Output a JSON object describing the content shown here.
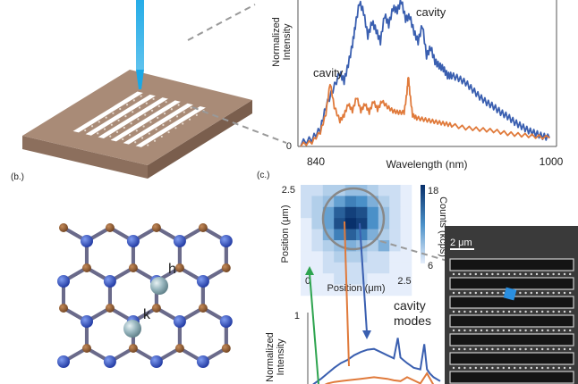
{
  "panel_labels": {
    "b": "(b.)",
    "c": "(c.)"
  },
  "colors": {
    "blue": "#3a5fb0",
    "orange": "#e07a3b",
    "green": "#2ea44f",
    "chip_top": "#a98b77",
    "chip_side": "#8c6f5d",
    "boron": "#8b5a35",
    "nitrogen": "#2f4db0",
    "defect": "#88a9b2",
    "laser": "#1aa8e6"
  },
  "lattice": {
    "site_h": "h",
    "site_k": "k"
  },
  "chart_data": [
    {
      "type": "line",
      "panel": "a",
      "xlabel": "Wavelength (nm)",
      "ylabel": "Normalized Intensity",
      "x_ticks": [
        "840",
        "1000"
      ],
      "y_ticks": [
        "0"
      ],
      "xlim": [
        820,
        1005
      ],
      "ylim": [
        0,
        1
      ],
      "annotations": [
        "cavity",
        "cavity"
      ],
      "grid": false,
      "series": [
        {
          "color": "blue",
          "x": [
            822,
            830,
            836,
            840,
            845,
            850,
            853,
            856,
            859,
            861,
            864,
            867,
            870,
            873,
            876,
            879,
            882,
            885,
            888,
            891,
            894,
            897,
            900,
            903,
            906,
            909,
            912,
            915,
            918,
            921,
            924,
            927,
            930,
            935,
            940,
            945,
            950,
            955,
            960,
            965,
            970,
            975,
            980,
            985,
            990,
            995,
            1000
          ],
          "y": [
            0.02,
            0.05,
            0.12,
            0.28,
            0.4,
            0.52,
            0.46,
            0.58,
            0.72,
            0.85,
            1.02,
            0.95,
            0.78,
            0.88,
            0.82,
            0.74,
            0.93,
            0.86,
            0.98,
            0.96,
            1.03,
            0.9,
            0.92,
            0.81,
            0.74,
            0.86,
            0.64,
            0.7,
            0.6,
            0.57,
            0.55,
            0.5,
            0.5,
            0.48,
            0.45,
            0.4,
            0.35,
            0.31,
            0.28,
            0.24,
            0.21,
            0.17,
            0.14,
            0.11,
            0.09,
            0.07,
            0.06
          ]
        },
        {
          "color": "orange",
          "x": [
            822,
            830,
            836,
            840,
            843,
            846,
            850,
            853,
            856,
            859,
            862,
            865,
            868,
            871,
            874,
            877,
            880,
            884,
            888,
            892,
            896,
            898,
            899,
            900,
            902,
            905,
            910,
            915,
            920,
            925,
            930,
            940,
            950,
            960,
            970,
            980,
            990,
            1000
          ],
          "y": [
            0.01,
            0.03,
            0.1,
            0.23,
            0.45,
            0.28,
            0.18,
            0.22,
            0.3,
            0.25,
            0.35,
            0.25,
            0.3,
            0.24,
            0.32,
            0.26,
            0.32,
            0.28,
            0.25,
            0.24,
            0.24,
            0.38,
            0.5,
            0.38,
            0.22,
            0.2,
            0.19,
            0.18,
            0.17,
            0.16,
            0.15,
            0.13,
            0.12,
            0.11,
            0.09,
            0.08,
            0.07,
            0.06
          ]
        }
      ]
    },
    {
      "type": "heatmap",
      "panel": "c",
      "xlabel": "Position (μm)",
      "ylabel": "Position (μm)",
      "colorbar_label": "Counts (kcps)",
      "colorbar_ticks": [
        "18",
        "6"
      ],
      "x_ticks": [
        "0",
        "2.5"
      ],
      "y_ticks": [
        "2.5"
      ],
      "xlim": [
        0,
        2.5
      ],
      "ylim": [
        0,
        2.5
      ],
      "grid_size": 10,
      "values": [
        [
          7,
          7,
          8,
          8,
          9,
          9,
          8,
          7,
          7,
          6
        ],
        [
          7,
          8,
          9,
          11,
          13,
          12,
          10,
          8,
          7,
          6
        ],
        [
          7,
          8,
          11,
          15,
          17,
          16,
          12,
          9,
          7,
          6
        ],
        [
          6,
          8,
          11,
          16,
          18,
          17,
          12,
          9,
          7,
          6
        ],
        [
          6,
          7,
          10,
          13,
          15,
          13,
          10,
          8,
          7,
          6
        ],
        [
          6,
          7,
          8,
          9,
          10,
          9,
          8,
          10,
          7,
          6
        ],
        [
          6,
          6,
          7,
          8,
          8,
          8,
          7,
          7,
          6,
          6
        ],
        [
          6,
          6,
          7,
          7,
          7,
          7,
          7,
          7,
          6,
          6
        ],
        [
          6,
          6,
          6,
          7,
          7,
          7,
          6,
          6,
          6,
          6
        ],
        [
          6,
          6,
          6,
          6,
          6,
          6,
          6,
          6,
          6,
          6
        ]
      ]
    },
    {
      "type": "line",
      "panel": "c-lower",
      "ylabel": "Normalized Intensity",
      "y_ticks": [
        "1"
      ],
      "annotation": "cavity modes",
      "xlim": [
        0,
        1
      ],
      "ylim": [
        0,
        1
      ],
      "series": [
        {
          "color": "blue",
          "x": [
            0.0,
            0.05,
            0.1,
            0.15,
            0.2,
            0.25,
            0.3,
            0.35,
            0.4,
            0.45,
            0.5,
            0.55,
            0.6,
            0.65,
            0.68,
            0.7,
            0.72,
            0.75,
            0.8,
            0.85,
            0.88,
            0.9,
            0.92,
            0.95,
            1.0
          ],
          "y": [
            0.05,
            0.12,
            0.18,
            0.25,
            0.32,
            0.38,
            0.42,
            0.48,
            0.52,
            0.55,
            0.56,
            0.52,
            0.48,
            0.44,
            0.7,
            0.45,
            0.42,
            0.38,
            0.32,
            0.3,
            0.62,
            0.3,
            0.25,
            0.2,
            0.15
          ]
        },
        {
          "color": "orange",
          "x": [
            0.0,
            0.05,
            0.1,
            0.15,
            0.2,
            0.3,
            0.4,
            0.5,
            0.6,
            0.65,
            0.7,
            0.75,
            0.8,
            0.85,
            0.9,
            0.95,
            1.0
          ],
          "y": [
            0.02,
            0.05,
            0.08,
            0.12,
            0.14,
            0.16,
            0.18,
            0.2,
            0.18,
            0.16,
            0.15,
            0.2,
            0.16,
            0.12,
            0.25,
            0.1,
            0.08
          ]
        }
      ]
    }
  ],
  "sem": {
    "scale_label": "2 μm"
  }
}
